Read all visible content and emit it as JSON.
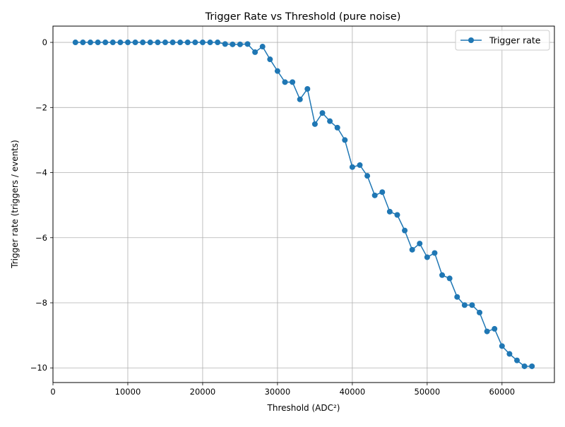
{
  "chart_data": {
    "type": "line",
    "title": "Trigger Rate vs Threshold (pure noise)",
    "xlabel": "Threshold (ADC²)",
    "ylabel": "Trigger rate (triggers / events)",
    "xlim": [
      0,
      67000
    ],
    "ylim": [
      -10.45,
      0.5
    ],
    "x_ticks": [
      0,
      10000,
      20000,
      30000,
      40000,
      50000,
      60000
    ],
    "x_tick_labels": [
      "0",
      "10000",
      "20000",
      "30000",
      "40000",
      "50000",
      "60000"
    ],
    "y_ticks": [
      0,
      -2,
      -4,
      -6,
      -8,
      -10
    ],
    "y_tick_labels": [
      "0",
      "−2",
      "−4",
      "−6",
      "−8",
      "−10"
    ],
    "grid": true,
    "legend_position": "top-right",
    "series": [
      {
        "name": "Trigger rate",
        "color": "#1f77b4",
        "marker": "circle",
        "x": [
          3000,
          4000,
          5000,
          6000,
          7000,
          8000,
          9000,
          10000,
          11000,
          12000,
          13000,
          14000,
          15000,
          16000,
          17000,
          18000,
          19000,
          20000,
          21000,
          22000,
          23000,
          24000,
          25000,
          26000,
          27000,
          28000,
          29000,
          30000,
          31000,
          32000,
          33000,
          34000,
          35000,
          36000,
          37000,
          38000,
          39000,
          40000,
          41000,
          42000,
          43000,
          44000,
          45000,
          46000,
          47000,
          48000,
          49000,
          50000,
          51000,
          52000,
          53000,
          54000,
          55000,
          56000,
          57000,
          58000,
          59000,
          60000,
          61000,
          62000,
          63000,
          64000
        ],
        "y": [
          0,
          0,
          0,
          0,
          0,
          0,
          0,
          0,
          0,
          0,
          0,
          0,
          0,
          0,
          0,
          0,
          0,
          0,
          0,
          0,
          -0.05,
          -0.06,
          -0.06,
          -0.05,
          -0.3,
          -0.13,
          -0.52,
          -0.88,
          -1.22,
          -1.22,
          -1.75,
          -1.43,
          -2.51,
          -2.17,
          -2.42,
          -2.62,
          -3.0,
          -3.83,
          -3.77,
          -4.1,
          -4.7,
          -4.6,
          -5.2,
          -5.3,
          -5.78,
          -6.37,
          -6.18,
          -6.6,
          -6.47,
          -7.15,
          -7.25,
          -7.82,
          -8.07,
          -8.07,
          -8.3,
          -8.88,
          -8.8,
          -9.33,
          -9.57,
          -9.77,
          -9.95,
          -9.95
        ]
      }
    ]
  }
}
